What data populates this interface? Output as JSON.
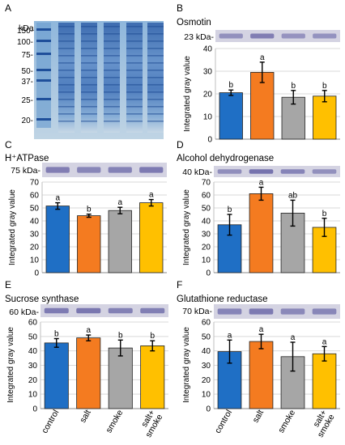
{
  "gel_panel": {
    "letter": "A",
    "unit": "kDa",
    "markers": [
      "150-",
      "100-",
      "75-",
      "50-",
      "37-",
      "25-",
      "20-"
    ]
  },
  "colors": {
    "control": "#1f6fc5",
    "salt": "#f47b20",
    "smoke": "#a6a6a6",
    "salt_smoke": "#ffc000",
    "blot_band": "#6b68a8",
    "gel_blue": "#4a7fc0"
  },
  "categories": [
    "control",
    "salt",
    "smoke",
    "salt+\nsmoke"
  ],
  "chart_data": [
    {
      "type": "bar",
      "letter": "B",
      "title": "Osmotin",
      "band_label": "23 kDa-",
      "ylabel": "Integrated gray value",
      "ylim": [
        0,
        40
      ],
      "yticks": [
        0,
        10,
        20,
        30,
        40
      ],
      "categories": [
        "control",
        "salt",
        "smoke",
        "salt+smoke"
      ],
      "values": [
        20.5,
        29.5,
        18.5,
        19
      ],
      "errors": [
        1.2,
        4.5,
        3.0,
        2.5
      ],
      "sig_letters": [
        "b",
        "a",
        "b",
        "b"
      ],
      "grid": true
    },
    {
      "type": "bar",
      "letter": "C",
      "title": "H⁺ATPase",
      "band_label": "75 kDa-",
      "ylabel": "Integrated gray value",
      "ylim": [
        0,
        70
      ],
      "yticks": [
        0,
        10,
        20,
        30,
        40,
        50,
        60,
        70
      ],
      "categories": [
        "control",
        "salt",
        "smoke",
        "salt+smoke"
      ],
      "values": [
        51.5,
        44,
        48,
        54
      ],
      "errors": [
        2.5,
        1.2,
        2.5,
        2.5
      ],
      "sig_letters": [
        "a",
        "b",
        "a",
        "a"
      ],
      "grid": true
    },
    {
      "type": "bar",
      "letter": "D",
      "title": "Alcohol dehydrogenase",
      "band_label": "40 kDa-",
      "ylabel": "Integrated gray value",
      "ylim": [
        0,
        70
      ],
      "yticks": [
        0,
        10,
        20,
        30,
        40,
        50,
        60,
        70
      ],
      "categories": [
        "control",
        "salt",
        "smoke",
        "salt+smoke"
      ],
      "values": [
        37,
        61,
        46,
        35
      ],
      "errors": [
        8,
        5,
        10,
        7
      ],
      "sig_letters": [
        "b",
        "a",
        "ab",
        "b"
      ],
      "grid": true
    },
    {
      "type": "bar",
      "letter": "E",
      "title": "Sucrose synthase",
      "band_label": "60 kDa-",
      "ylabel": "Integrated  gray value",
      "ylim": [
        0,
        60
      ],
      "yticks": [
        0,
        10,
        20,
        30,
        40,
        50,
        60
      ],
      "categories": [
        "control",
        "salt",
        "smoke",
        "salt+smoke"
      ],
      "values": [
        45.5,
        49,
        42,
        43.5
      ],
      "errors": [
        3.0,
        2.0,
        5.5,
        3.5
      ],
      "sig_letters": [
        "b",
        "a",
        "b",
        "b"
      ],
      "grid": true
    },
    {
      "type": "bar",
      "letter": "F",
      "title": "Glutathione reductase",
      "band_label": "70 kDa-",
      "ylabel": "Integrated  gray value",
      "ylim": [
        0,
        60
      ],
      "yticks": [
        0,
        10,
        20,
        30,
        40,
        50,
        60
      ],
      "categories": [
        "control",
        "salt",
        "smoke",
        "salt+smoke"
      ],
      "values": [
        39.5,
        46.5,
        36,
        38
      ],
      "errors": [
        8,
        5,
        10,
        5
      ],
      "sig_letters": [
        "a",
        "a",
        "a",
        "a"
      ],
      "grid": true
    }
  ]
}
